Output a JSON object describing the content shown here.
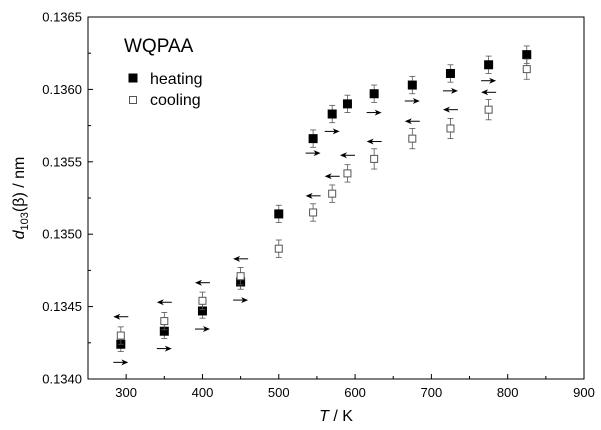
{
  "chart_data": {
    "type": "scatter",
    "title": "WQPAA",
    "xlabel": {
      "italic": "T",
      "rest": " / K"
    },
    "ylabel": {
      "italic": "d",
      "sub": "103",
      "rest": "(β) / nm"
    },
    "xlim": [
      250,
      900
    ],
    "ylim": [
      0.134,
      0.1365
    ],
    "xticks": [
      300,
      400,
      500,
      600,
      700,
      800,
      900
    ],
    "yticks": [
      "0.1340",
      "0.1345",
      "0.1350",
      "0.1355",
      "0.1360",
      "0.1365"
    ],
    "legend_position": "top-left",
    "series": [
      {
        "name": "heating",
        "marker": "filled-square",
        "points": [
          {
            "x": 293,
            "y": 0.13424,
            "err": 5e-05
          },
          {
            "x": 350,
            "y": 0.13433,
            "err": 5e-05
          },
          {
            "x": 400,
            "y": 0.13447,
            "err": 5e-05
          },
          {
            "x": 450,
            "y": 0.13467,
            "err": 5e-05
          },
          {
            "x": 500,
            "y": 0.13514,
            "err": 6e-05
          },
          {
            "x": 545,
            "y": 0.13566,
            "err": 6e-05
          },
          {
            "x": 570,
            "y": 0.13583,
            "err": 6e-05
          },
          {
            "x": 590,
            "y": 0.1359,
            "err": 6e-05
          },
          {
            "x": 625,
            "y": 0.13597,
            "err": 6e-05
          },
          {
            "x": 675,
            "y": 0.13603,
            "err": 6e-05
          },
          {
            "x": 725,
            "y": 0.13611,
            "err": 6e-05
          },
          {
            "x": 775,
            "y": 0.13617,
            "err": 6e-05
          },
          {
            "x": 825,
            "y": 0.13624,
            "err": 6e-05
          }
        ]
      },
      {
        "name": "cooling",
        "marker": "open-square",
        "points": [
          {
            "x": 293,
            "y": 0.1343,
            "err": 6e-05
          },
          {
            "x": 350,
            "y": 0.1344,
            "err": 6e-05
          },
          {
            "x": 400,
            "y": 0.13454,
            "err": 6e-05
          },
          {
            "x": 450,
            "y": 0.13471,
            "err": 6e-05
          },
          {
            "x": 500,
            "y": 0.1349,
            "err": 6e-05
          },
          {
            "x": 545,
            "y": 0.13515,
            "err": 6e-05
          },
          {
            "x": 570,
            "y": 0.13528,
            "err": 6e-05
          },
          {
            "x": 590,
            "y": 0.13542,
            "err": 6e-05
          },
          {
            "x": 625,
            "y": 0.13552,
            "err": 7e-05
          },
          {
            "x": 675,
            "y": 0.13566,
            "err": 7e-05
          },
          {
            "x": 725,
            "y": 0.13573,
            "err": 7e-05
          },
          {
            "x": 775,
            "y": 0.13586,
            "err": 7e-05
          },
          {
            "x": 825,
            "y": 0.13614,
            "err": 7e-05
          }
        ]
      }
    ],
    "arrows": [
      {
        "x": 293,
        "y": 0.134115,
        "dir": "right"
      },
      {
        "x": 350,
        "y": 0.13421,
        "dir": "right"
      },
      {
        "x": 400,
        "y": 0.134345,
        "dir": "right"
      },
      {
        "x": 450,
        "y": 0.134545,
        "dir": "right"
      },
      {
        "x": 545,
        "y": 0.13556,
        "dir": "right"
      },
      {
        "x": 570,
        "y": 0.13571,
        "dir": "right"
      },
      {
        "x": 625,
        "y": 0.13584,
        "dir": "right"
      },
      {
        "x": 675,
        "y": 0.13592,
        "dir": "right"
      },
      {
        "x": 725,
        "y": 0.13599,
        "dir": "right"
      },
      {
        "x": 775,
        "y": 0.13606,
        "dir": "right"
      },
      {
        "x": 293,
        "y": 0.13443,
        "dir": "left"
      },
      {
        "x": 350,
        "y": 0.13453,
        "dir": "left"
      },
      {
        "x": 400,
        "y": 0.134665,
        "dir": "left"
      },
      {
        "x": 450,
        "y": 0.13483,
        "dir": "left"
      },
      {
        "x": 545,
        "y": 0.135265,
        "dir": "left"
      },
      {
        "x": 570,
        "y": 0.1354,
        "dir": "left"
      },
      {
        "x": 590,
        "y": 0.135545,
        "dir": "left"
      },
      {
        "x": 625,
        "y": 0.13564,
        "dir": "left"
      },
      {
        "x": 675,
        "y": 0.13578,
        "dir": "left"
      },
      {
        "x": 725,
        "y": 0.13586,
        "dir": "left"
      },
      {
        "x": 775,
        "y": 0.13598,
        "dir": "left"
      }
    ],
    "colors": {
      "axis": "#000000",
      "marker": "#000000",
      "error_bar": "#555555"
    }
  }
}
